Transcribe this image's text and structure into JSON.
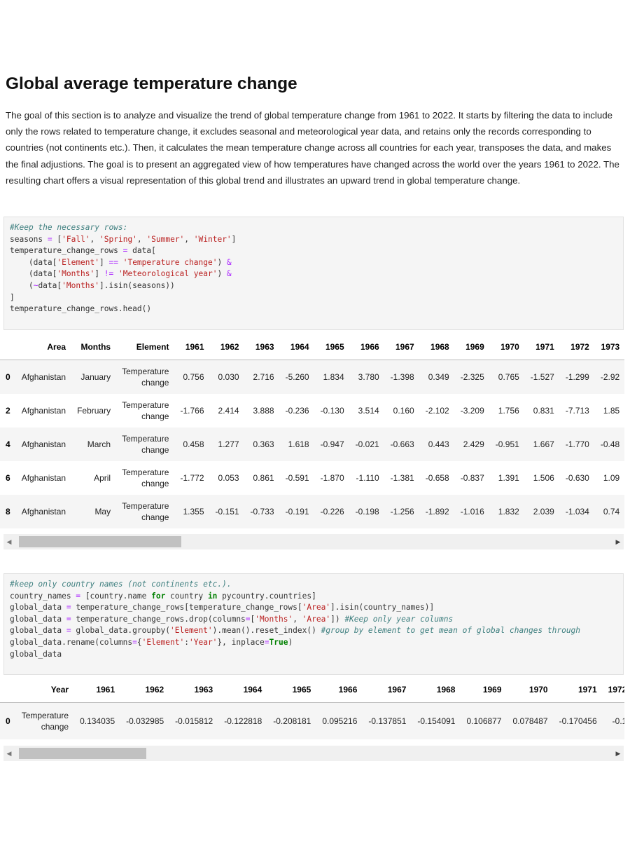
{
  "heading": "Global average temperature change",
  "paragraph": "The goal of this section is to analyze and visualize the trend of global temperature change from 1961 to 2022. It starts by filtering the data to include only the rows related to temperature change, it excludes seasonal and meteorological year data, and retains only the records corresponding to countries (not continents etc.). Then, it calculates the mean temperature change across all countries for each year, transposes the data, and makes the final adjustions. The goal is to present an aggregated view of how temperatures have changed across the world over the years 1961 to 2022. The resulting chart offers a visual representation of this global trend and illustrates an upward trend in global temperature change.",
  "cell1": {
    "code_lines": [
      "#Keep the necessary rows:",
      "seasons = ['Fall', 'Spring', 'Summer', 'Winter']",
      "temperature_change_rows = data[",
      "    (data['Element'] == 'Temperature change') &",
      "    (data['Months'] != 'Meteorological year') &",
      "    (~data['Months'].isin(seasons))",
      "]",
      "temperature_change_rows.head()"
    ],
    "table": {
      "columns": [
        "",
        "Area",
        "Months",
        "Element",
        "1961",
        "1962",
        "1963",
        "1964",
        "1965",
        "1966",
        "1967",
        "1968",
        "1969",
        "1970",
        "1971",
        "1972",
        "1973"
      ],
      "rows": [
        [
          "0",
          "Afghanistan",
          "January",
          "Temperature change",
          "0.756",
          "0.030",
          "2.716",
          "-5.260",
          "1.834",
          "3.780",
          "-1.398",
          "0.349",
          "-2.325",
          "0.765",
          "-1.527",
          "-1.299",
          "-2.92"
        ],
        [
          "2",
          "Afghanistan",
          "February",
          "Temperature change",
          "-1.766",
          "2.414",
          "3.888",
          "-0.236",
          "-0.130",
          "3.514",
          "0.160",
          "-2.102",
          "-3.209",
          "1.756",
          "0.831",
          "-7.713",
          "1.85"
        ],
        [
          "4",
          "Afghanistan",
          "March",
          "Temperature change",
          "0.458",
          "1.277",
          "0.363",
          "1.618",
          "-0.947",
          "-0.021",
          "-0.663",
          "0.443",
          "2.429",
          "-0.951",
          "1.667",
          "-1.770",
          "-0.48"
        ],
        [
          "6",
          "Afghanistan",
          "April",
          "Temperature change",
          "-1.772",
          "0.053",
          "0.861",
          "-0.591",
          "-1.870",
          "-1.110",
          "-1.381",
          "-0.658",
          "-0.837",
          "1.391",
          "1.506",
          "-0.630",
          "1.09"
        ],
        [
          "8",
          "Afghanistan",
          "May",
          "Temperature change",
          "1.355",
          "-0.151",
          "-0.733",
          "-0.191",
          "-0.226",
          "-0.198",
          "-1.256",
          "-1.892",
          "-1.016",
          "1.832",
          "2.039",
          "-1.034",
          "0.74"
        ]
      ]
    }
  },
  "cell2": {
    "code_lines": [
      "#keep only country names (not continents etc.).",
      "country_names = [country.name for country in pycountry.countries]",
      "global_data = temperature_change_rows[temperature_change_rows['Area'].isin(country_names)]",
      "global_data = temperature_change_rows.drop(columns=['Months', 'Area']) #Keep only year columns",
      "global_data = global_data.groupby('Element').mean().reset_index() #group by element to get mean of global changes through",
      "global_data.rename(columns={'Element':'Year'}, inplace=True)",
      "global_data"
    ],
    "table": {
      "columns": [
        "",
        "Year",
        "1961",
        "1962",
        "1963",
        "1964",
        "1965",
        "1966",
        "1967",
        "1968",
        "1969",
        "1970",
        "1971",
        "1972"
      ],
      "rows": [
        [
          "0",
          "Temperature change",
          "0.134035",
          "-0.032985",
          "-0.015812",
          "-0.122818",
          "-0.208181",
          "0.095216",
          "-0.137851",
          "-0.154091",
          "0.106877",
          "0.078487",
          "-0.170456",
          "-0.1"
        ]
      ]
    }
  }
}
